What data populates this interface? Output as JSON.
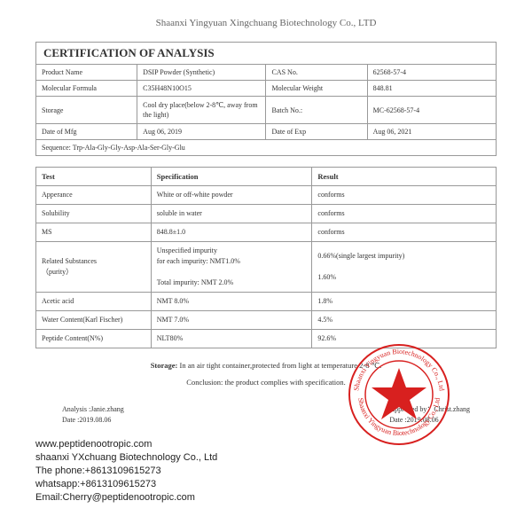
{
  "header": {
    "company": "Shaanxi Yingyuan Xingchuang Biotechnology Co., LTD"
  },
  "title": "CERTIFICATION OF ANALYSIS",
  "info": {
    "r1c1": "Product Name",
    "r1c2": "DSIP  Powder (Synthetic)",
    "r1c3": "CAS No.",
    "r1c4": "62568-57-4",
    "r2c1": "Molecular Formula",
    "r2c2": "C35H48N10O15",
    "r2c3": "Molecular Weight",
    "r2c4": "848.81",
    "r3c1": "Storage",
    "r3c2": "Cool dry place(below 2-8℃, away from the light)",
    "r3c3": "Batch No.:",
    "r3c4": "MC-62568-57-4",
    "r4c1": "Date of Mfg",
    "r4c2": "Aug 06, 2019",
    "r4c3": "Date of Exp",
    "r4c4": "Aug 06, 2021",
    "seq": "Sequence: Trp-Ala-Gly-Gly-Asp-Ala-Ser-Gly-Glu"
  },
  "spec": {
    "h1": "Test",
    "h2": "Specification",
    "h3": "Result",
    "rows": [
      {
        "t": "Apperance",
        "s": "White or off-white powder",
        "r": "conforms"
      },
      {
        "t": "Solubility",
        "s": "soluble in water",
        "r": "conforms"
      },
      {
        "t": "MS",
        "s": "848.8±1.0",
        "r": "conforms"
      },
      {
        "t": "Related Substances\n（purity）",
        "s": "Unspecified impurity\nfor each impurity: NMT1.0%\n\nTotal impurity: NMT 2.0%",
        "r": "0.66%(single largest impurity)\n\n1.60%"
      },
      {
        "t": "Acetic acid",
        "s": "NMT 8.0%",
        "r": "1.8%"
      },
      {
        "t": "Water Content(Karl Fischer)",
        "s": "NMT 7.0%",
        "r": "4.5%"
      },
      {
        "t": "Peptide Content(N%)",
        "s": "NLT80%",
        "r": "92.6%"
      }
    ]
  },
  "storage_line": {
    "label": "Storage:",
    "text": "  In an air tight container,protected from light at temperature 2-8 ℃."
  },
  "conclusion": "Conclusion:  the product complies with specification.",
  "sign": {
    "left1": "Analysis  :Janie.zhang",
    "left2": "Date :2019.08.06",
    "right1": "Approved by：Christ.zhang",
    "right2": "Date :2019.08.06"
  },
  "contact": {
    "l1": "www.peptidenootropic.com",
    "l2": "shaanxi YXchuang Biotechnology Co., Ltd",
    "l3": "The phone:+8613109615273",
    "l4": " whatsapp:+8613109615273",
    "l5": "Email:Cherry@peptidenootropic.com"
  },
  "stamp": {
    "outer_text": "Shaanxi Yingyuan Biotechnology Co., Ltd",
    "color": "#d8201f"
  }
}
